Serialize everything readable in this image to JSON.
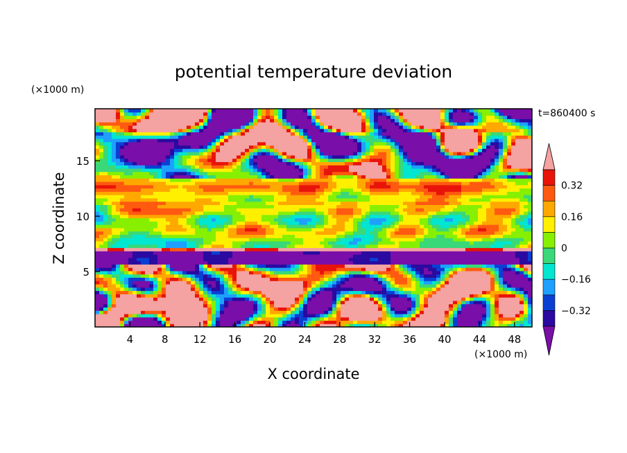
{
  "chart_data": {
    "type": "heatmap",
    "title": "potential temperature deviation",
    "xlabel": "X coordinate",
    "ylabel": "Z coordinate",
    "x_unit": "(×1000 m)",
    "y_unit": "(×1000 m)",
    "time_label": "t=860400 s",
    "xlim": [
      0,
      50
    ],
    "ylim": [
      0,
      19.7
    ],
    "x_ticks": [
      4,
      8,
      12,
      16,
      20,
      24,
      28,
      32,
      36,
      40,
      44,
      48
    ],
    "y_ticks": [
      5,
      10,
      15
    ],
    "colorbar": {
      "levels": [
        -0.4,
        -0.32,
        -0.24,
        -0.16,
        -0.08,
        0,
        0.08,
        0.16,
        0.24,
        0.32,
        0.4
      ],
      "tick_labels": [
        "0.32",
        "0.16",
        "0",
        "−0.16",
        "−0.32"
      ],
      "tick_values": [
        0.32,
        0.16,
        0,
        -0.16,
        -0.32
      ],
      "colors": [
        "#7a0ea8",
        "#2a0aa0",
        "#0a3fd4",
        "#1ea0ff",
        "#00e6d0",
        "#3ad878",
        "#86f000",
        "#fff000",
        "#ffa800",
        "#ff5a10",
        "#e8140a",
        "#f4a2a2"
      ],
      "extend": "both"
    },
    "fields": {
      "bands": [
        {
          "z": [
            17.5,
            19.7
          ],
          "pattern": "patchy",
          "mean": 0.1
        },
        {
          "z": [
            13.5,
            17.5
          ],
          "pattern": "patchy",
          "mean": -0.05
        },
        {
          "z": [
            11,
            13.5
          ],
          "pattern": "layered",
          "mean": 0.18
        },
        {
          "z": [
            7.3,
            11
          ],
          "pattern": "layered",
          "mean": 0.06
        },
        {
          "z": [
            6.8,
            7.3
          ],
          "pattern": "uniform",
          "mean": 0.45
        },
        {
          "z": [
            5.8,
            6.8
          ],
          "pattern": "uniform",
          "mean": -0.45
        },
        {
          "z": [
            0,
            5.8
          ],
          "pattern": "turbulent",
          "mean": 0.1
        }
      ]
    }
  }
}
